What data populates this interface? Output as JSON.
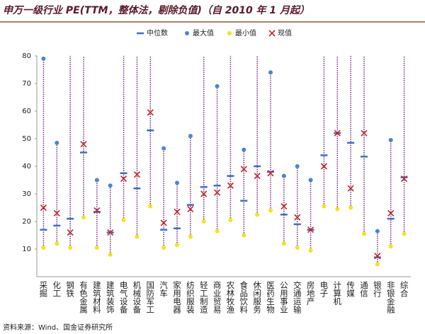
{
  "chart_data": {
    "type": "range",
    "title": "申万一级行业 PE(TTM，整体法，剔除负值)（自 2010 年 1 月起）",
    "source": "资料来源：Wind、国金证券研究所",
    "categories": [
      "采掘",
      "化工",
      "钢铁",
      "有色金属",
      "建筑材料",
      "建筑装饰",
      "电气设备",
      "机械设备",
      "国防军工",
      "汽车",
      "家用电器",
      "纺织服装",
      "轻工制造",
      "商业贸易",
      "农林牧渔",
      "食品饮料",
      "休闲服务",
      "医药生物",
      "公用事业",
      "交通运输",
      "房地产",
      "电子",
      "计算机",
      "传媒",
      "通信",
      "银行",
      "非银金融",
      "综合"
    ],
    "series": [
      {
        "name": "中位数",
        "color": "#3b6fc2",
        "values": [
          17,
          18.5,
          21,
          45,
          23.5,
          16,
          37.5,
          32,
          53,
          17,
          17.5,
          26,
          32.5,
          33,
          36.5,
          27.5,
          40,
          38,
          22.5,
          19,
          17,
          44,
          52,
          48.5,
          43.5,
          7,
          21,
          36
        ]
      },
      {
        "name": "最大值",
        "color": "#4a86d0",
        "values": [
          79,
          48.5,
          null,
          null,
          35,
          33,
          null,
          null,
          null,
          46.5,
          34,
          51,
          null,
          69,
          null,
          46,
          null,
          74,
          36.5,
          40,
          35,
          null,
          null,
          null,
          null,
          16.5,
          49.5,
          null
        ]
      },
      {
        "name": "最小值",
        "color": "#f2e320",
        "values": [
          10.5,
          12,
          10.5,
          21.5,
          10.5,
          8,
          20.5,
          14.5,
          25.5,
          10.5,
          11.5,
          14.5,
          20,
          16.5,
          20.5,
          15,
          22.5,
          24,
          12,
          10.5,
          9.5,
          25.5,
          24.5,
          25,
          15.5,
          4.5,
          11,
          15.5
        ]
      },
      {
        "name": "现值",
        "color": "#c0282c",
        "values": [
          25,
          23,
          16,
          48,
          24,
          16,
          35.5,
          37,
          59.5,
          19.5,
          23.5,
          24.5,
          30,
          30.5,
          33,
          39,
          36.5,
          37.5,
          25.5,
          21.5,
          17,
          40,
          52,
          32,
          52,
          7.5,
          23,
          35.5
        ]
      }
    ],
    "range_color": "#7a2b8a",
    "ylim": [
      0,
      80
    ],
    "yticks": [
      10,
      20,
      30,
      40,
      50,
      60,
      70,
      80
    ]
  }
}
